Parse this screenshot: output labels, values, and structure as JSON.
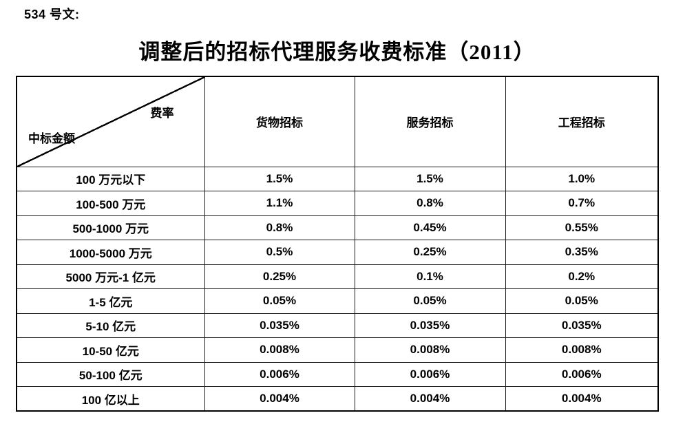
{
  "document": {
    "doc_number_label": "534 号文:",
    "title": "调整后的招标代理服务收费标准（2011）"
  },
  "table": {
    "corner": {
      "top_right_label": "费率",
      "bottom_left_label": "中标金额"
    },
    "columns": [
      "货物招标",
      "服务招标",
      "工程招标"
    ],
    "rows": [
      {
        "label": "100 万元以下",
        "values": [
          "1.5%",
          "1.5%",
          "1.0%"
        ]
      },
      {
        "label": "100-500 万元",
        "values": [
          "1.1%",
          "0.8%",
          "0.7%"
        ]
      },
      {
        "label": "500-1000 万元",
        "values": [
          "0.8%",
          "0.45%",
          "0.55%"
        ]
      },
      {
        "label": "1000-5000 万元",
        "values": [
          "0.5%",
          "0.25%",
          "0.35%"
        ]
      },
      {
        "label": "5000 万元-1 亿元",
        "values": [
          "0.25%",
          "0.1%",
          "0.2%"
        ]
      },
      {
        "label": "1-5 亿元",
        "values": [
          "0.05%",
          "0.05%",
          "0.05%"
        ]
      },
      {
        "label": "5-10 亿元",
        "values": [
          "0.035%",
          "0.035%",
          "0.035%"
        ]
      },
      {
        "label": "10-50 亿元",
        "values": [
          "0.008%",
          "0.008%",
          "0.008%"
        ]
      },
      {
        "label": "50-100 亿元",
        "values": [
          "0.006%",
          "0.006%",
          "0.006%"
        ]
      },
      {
        "label": "100 亿以上",
        "values": [
          "0.004%",
          "0.004%",
          "0.004%"
        ]
      }
    ]
  },
  "colors": {
    "text": "#000000",
    "border": "#1a1a1a",
    "background": "#ffffff"
  }
}
